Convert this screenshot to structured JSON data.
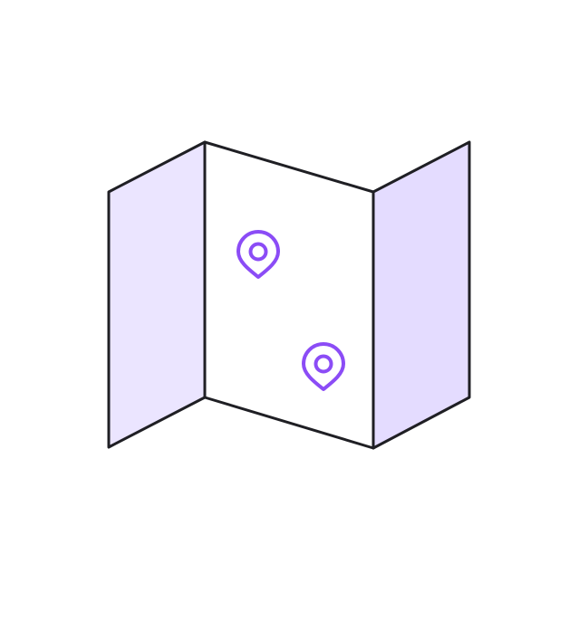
{
  "illustration": {
    "subject": "folded-map",
    "panels": [
      {
        "name": "left-panel",
        "fill": "#ebe5ff"
      },
      {
        "name": "center-panel",
        "fill": "#ffffff"
      },
      {
        "name": "right-panel",
        "fill": "#e4dcff"
      }
    ],
    "outline_color": "#1f1f24",
    "pins": [
      {
        "name": "location-pin-upper",
        "icon": "location-pin-icon",
        "color": "#8b4cf6"
      },
      {
        "name": "location-pin-lower",
        "icon": "location-pin-icon",
        "color": "#8b4cf6"
      }
    ]
  }
}
